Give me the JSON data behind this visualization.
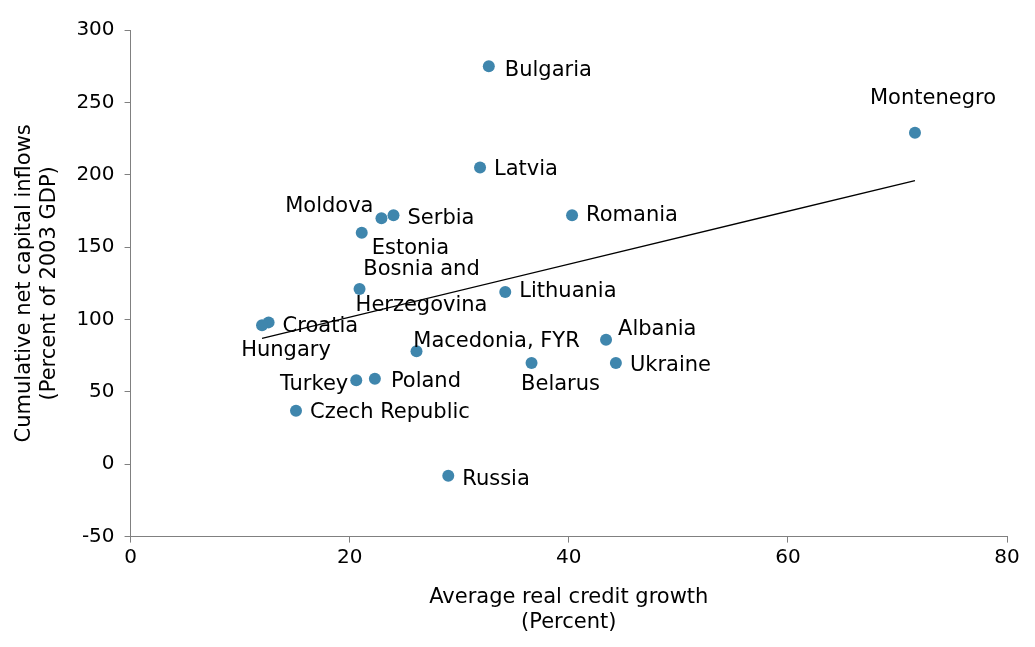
{
  "chart_data": {
    "type": "scatter",
    "xlabel": "Average real credit growth\n(Percent)",
    "ylabel": "Cumulative net capital inflows\n(Percent of 2003 GDP)",
    "xlim": [
      0,
      80
    ],
    "xticks": [
      0,
      20,
      40,
      60,
      80
    ],
    "ylim": [
      -50,
      300
    ],
    "yticks": [
      -50,
      0,
      50,
      100,
      150,
      200,
      250,
      300
    ],
    "grid": false,
    "legend": false,
    "marker": "circle",
    "series": [
      {
        "type": "scatter",
        "color": "#3f86ad",
        "x": [
          32.7,
          31.9,
          71.6,
          22.9,
          24.0,
          40.3,
          21.1,
          20.9,
          34.2,
          12.6,
          12.0,
          43.4,
          26.1,
          36.6,
          44.3,
          20.6,
          22.3,
          15.1,
          29.0
        ],
        "values": [
          275,
          205,
          229,
          170,
          172,
          172,
          160,
          121,
          119,
          98,
          96,
          86,
          78,
          70,
          70,
          58,
          59,
          37,
          -8
        ]
      },
      {
        "type": "line",
        "color": "#000000",
        "marker": "none",
        "x": [
          12.0,
          71.6
        ],
        "values": [
          87,
          196
        ]
      }
    ],
    "annotations": [
      {
        "text": "Bulgaria",
        "x": 32.7,
        "y": 275
      },
      {
        "text": "Latvia",
        "x": 31.9,
        "y": 205
      },
      {
        "text": "Montenegro",
        "x": 71.6,
        "y": 229
      },
      {
        "text": "Moldova",
        "x": 22.9,
        "y": 170
      },
      {
        "text": "Serbia",
        "x": 24.0,
        "y": 172
      },
      {
        "text": "Romania",
        "x": 40.3,
        "y": 172
      },
      {
        "text": "Estonia",
        "x": 21.1,
        "y": 160
      },
      {
        "text": "Bosnia and Herzegovina",
        "x": 20.9,
        "y": 121
      },
      {
        "text": "Lithuania",
        "x": 34.2,
        "y": 119
      },
      {
        "text": "Croatia",
        "x": 12.6,
        "y": 98
      },
      {
        "text": "Hungary",
        "x": 12.0,
        "y": 96
      },
      {
        "text": "Albania",
        "x": 43.4,
        "y": 86
      },
      {
        "text": "Macedonia, FYR",
        "x": 26.1,
        "y": 78
      },
      {
        "text": "Belarus",
        "x": 36.6,
        "y": 70
      },
      {
        "text": "Ukraine",
        "x": 44.3,
        "y": 70
      },
      {
        "text": "Turkey",
        "x": 20.6,
        "y": 58
      },
      {
        "text": "Poland",
        "x": 22.3,
        "y": 59
      },
      {
        "text": "Czech Republic",
        "x": 15.1,
        "y": 37
      },
      {
        "text": "Russia",
        "x": 29.0,
        "y": -8
      }
    ]
  }
}
